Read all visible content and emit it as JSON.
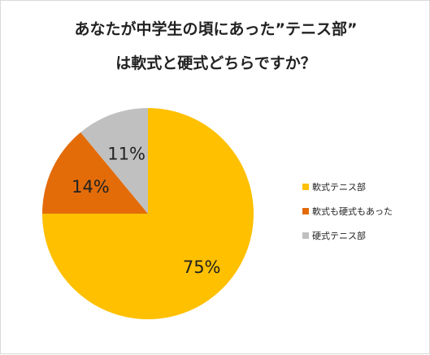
{
  "title_line1": "あなたが中学生の頃にあった”テニス部”",
  "title_line2": "は軟式と硬式どちらですか？",
  "chart_data": {
    "type": "pie",
    "categories": [
      "軟式テニス部",
      "軟式も硬式もあった",
      "硬式テニス部"
    ],
    "values": [
      75,
      14,
      11
    ],
    "labels": [
      "75%",
      "14%",
      "11%"
    ],
    "colors": [
      "#FFC000",
      "#E36C09",
      "#C0C0C0"
    ],
    "legend_position": "right"
  }
}
